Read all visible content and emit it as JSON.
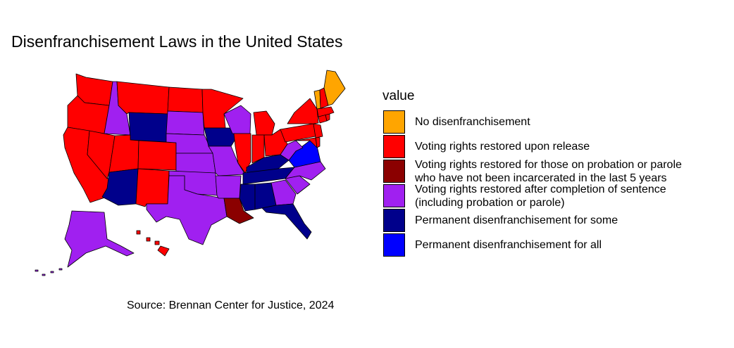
{
  "title": "Disenfranchisement Laws in the United States",
  "caption": "Source: Brennan Center for Justice, 2024",
  "legend": {
    "title": "value",
    "items": [
      {
        "category": "none",
        "line1": "No disenfranchisement",
        "line2": "",
        "color": "#FFA500"
      },
      {
        "category": "release",
        "line1": "Voting rights restored upon release",
        "line2": "",
        "color": "#FF0000"
      },
      {
        "category": "probation",
        "line1": "Voting rights restored for those on probation or parole",
        "line2": "who have not been incarcerated in the last 5 years",
        "color": "#8B0000"
      },
      {
        "category": "sentence",
        "line1": "Voting rights restored after completion of sentence",
        "line2": "(including probation or parole)",
        "color": "#A020F0"
      },
      {
        "category": "some",
        "line1": "Permanent disenfranchisement for some",
        "line2": "",
        "color": "#00008B"
      },
      {
        "category": "all",
        "line1": "Permanent disenfranchisement for all",
        "line2": "",
        "color": "#0000FF"
      }
    ]
  },
  "states": {
    "ME": "none",
    "VT": "none",
    "WA": "release",
    "OR": "release",
    "CA": "release",
    "NV": "release",
    "UT": "release",
    "CO": "release",
    "NM": "release",
    "MT": "release",
    "ND": "release",
    "MN": "release",
    "MI": "release",
    "IL": "release",
    "IN": "release",
    "OH": "release",
    "PA": "release",
    "NY": "release",
    "NJ": "release",
    "NH": "release",
    "MA": "release",
    "RI": "release",
    "CT": "release",
    "MD": "release",
    "DE": "release",
    "HI": "release",
    "LA": "probation",
    "ID": "sentence",
    "SD": "sentence",
    "NE": "sentence",
    "KS": "sentence",
    "OK": "sentence",
    "TX": "sentence",
    "MO": "sentence",
    "AR": "sentence",
    "WI": "sentence",
    "WV": "sentence",
    "NC": "sentence",
    "SC": "sentence",
    "GA": "sentence",
    "AK": "sentence",
    "WY": "some",
    "AZ": "some",
    "IA": "some",
    "KY": "some",
    "TN": "some",
    "MS": "some",
    "AL": "some",
    "FL": "some",
    "VA": "all"
  }
}
